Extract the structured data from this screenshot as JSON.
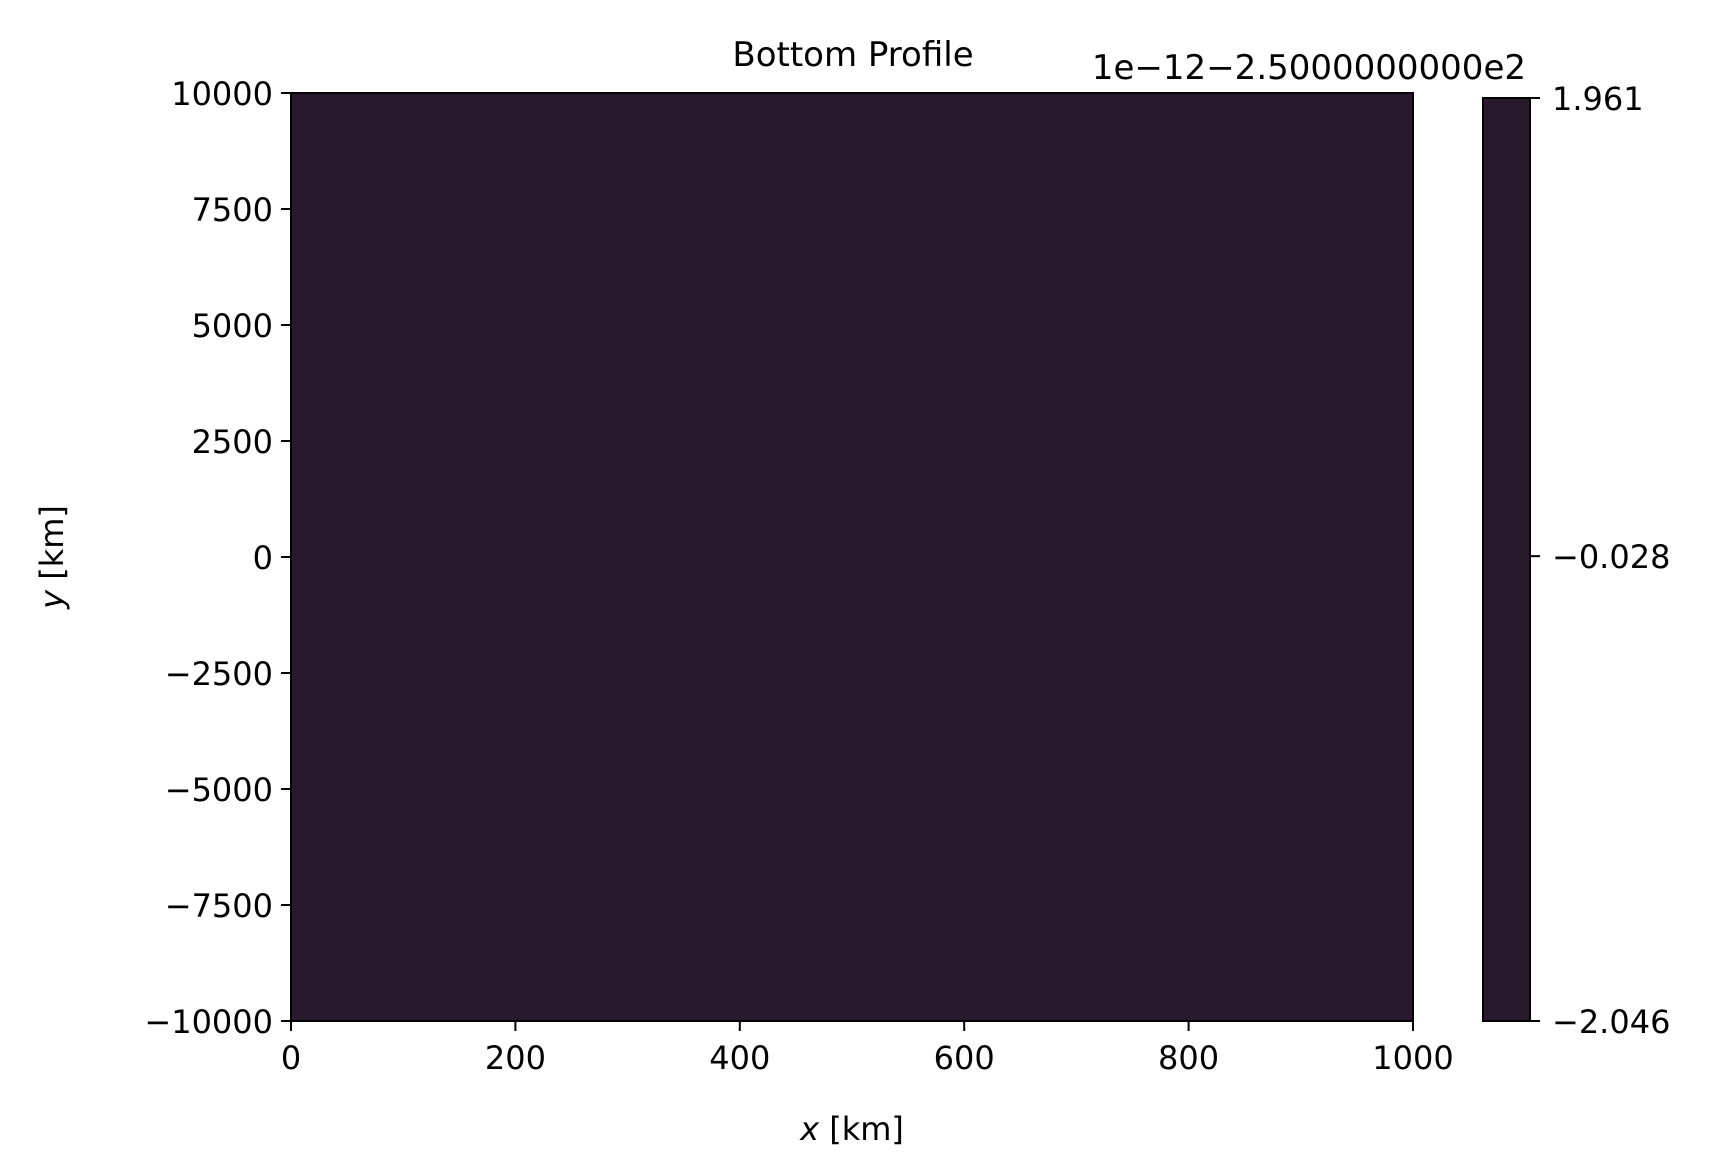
{
  "chart_data": {
    "type": "heatmap",
    "title": "Bottom Profile",
    "xlabel_var": "x",
    "xlabel_unit": " [km]",
    "ylabel_var": "y",
    "ylabel_unit": " [km]",
    "xlim": [
      0,
      1000
    ],
    "ylim": [
      -10000,
      10000
    ],
    "xticks": [
      0,
      200,
      400,
      600,
      800,
      1000
    ],
    "xtick_labels": [
      "0",
      "200",
      "400",
      "600",
      "800",
      "1000"
    ],
    "yticks": [
      -10000,
      -7500,
      -5000,
      -2500,
      0,
      2500,
      5000,
      7500,
      10000
    ],
    "ytick_labels": [
      "−10000",
      "−7500",
      "−5000",
      "−2500",
      "0",
      "2500",
      "5000",
      "7500",
      "10000"
    ],
    "field_value": -250,
    "field_color": "#281a2c",
    "grid": false,
    "colorbar": {
      "offset_label": "1e−12−2.5000000000e2",
      "range": [
        -2.046,
        1.961
      ],
      "ticks": [
        -2.046,
        -0.028,
        1.961
      ],
      "tick_labels": [
        "−2.046",
        "−0.028",
        "1.961"
      ],
      "color": "#281a2c"
    }
  }
}
